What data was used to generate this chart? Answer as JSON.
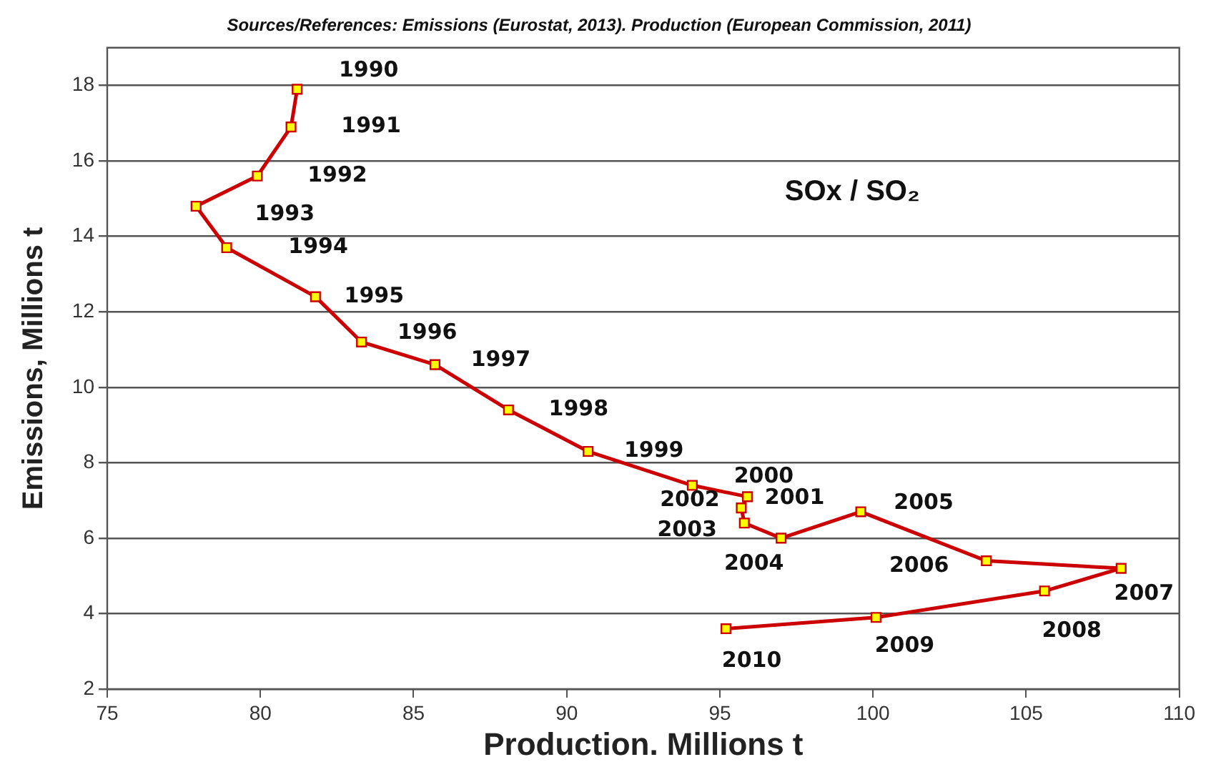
{
  "chart_data": {
    "type": "line",
    "title": "Sources/References: Emissions (Eurostat, 2013). Production (European Commission, 2011)",
    "xlabel": "Production. Millions t",
    "ylabel": "Emissions, Millions t",
    "series": [
      {
        "color": "#cc0000",
        "x": [
          81.2,
          81.0,
          79.9,
          77.9,
          78.9,
          81.8,
          83.3,
          85.7,
          88.1,
          90.7,
          94.1,
          95.9,
          95.7,
          95.8,
          97.0,
          99.6,
          103.7,
          108.1,
          105.6,
          100.1,
          95.2
        ],
        "values": [
          17.9,
          16.9,
          15.6,
          14.8,
          13.7,
          12.4,
          11.2,
          10.6,
          9.4,
          8.3,
          7.4,
          7.1,
          6.8,
          6.4,
          6.0,
          6.7,
          5.4,
          5.2,
          4.6,
          3.9,
          3.6
        ]
      }
    ],
    "xlim": [
      75,
      110
    ],
    "xticks": [
      75,
      80,
      85,
      90,
      95,
      100,
      105,
      110
    ],
    "ylim": [
      2,
      19
    ],
    "yticks": [
      2,
      4,
      6,
      8,
      10,
      12,
      14,
      16,
      18
    ],
    "grid": "y",
    "legend": false,
    "marker": "square",
    "line_style": "solid",
    "annotations": [
      {
        "text": "1990",
        "x": 81.2,
        "y": 17.9
      },
      {
        "text": "1991",
        "x": 81.0,
        "y": 16.9
      },
      {
        "text": "1992",
        "x": 79.9,
        "y": 15.6
      },
      {
        "text": "1993",
        "x": 77.9,
        "y": 14.8
      },
      {
        "text": "1994",
        "x": 78.9,
        "y": 13.7
      },
      {
        "text": "1995",
        "x": 81.8,
        "y": 12.4
      },
      {
        "text": "1996",
        "x": 83.3,
        "y": 11.2
      },
      {
        "text": "1997",
        "x": 85.7,
        "y": 10.6
      },
      {
        "text": "1998",
        "x": 88.1,
        "y": 9.4
      },
      {
        "text": "1999",
        "x": 90.7,
        "y": 8.3
      },
      {
        "text": "2000",
        "x": 94.1,
        "y": 7.4
      },
      {
        "text": "2001",
        "x": 95.9,
        "y": 7.1
      },
      {
        "text": "2002",
        "x": 95.7,
        "y": 6.8
      },
      {
        "text": "2003",
        "x": 95.8,
        "y": 6.4
      },
      {
        "text": "2004",
        "x": 97.0,
        "y": 6.0
      },
      {
        "text": "2005",
        "x": 99.6,
        "y": 6.7
      },
      {
        "text": "2006",
        "x": 103.7,
        "y": 5.4
      },
      {
        "text": "2007",
        "x": 108.1,
        "y": 5.2
      },
      {
        "text": "2008",
        "x": 105.6,
        "y": 4.6
      },
      {
        "text": "2009",
        "x": 100.1,
        "y": 3.9
      },
      {
        "text": "2010",
        "x": 95.2,
        "y": 3.6
      },
      "SOx / SO₂"
    ]
  }
}
